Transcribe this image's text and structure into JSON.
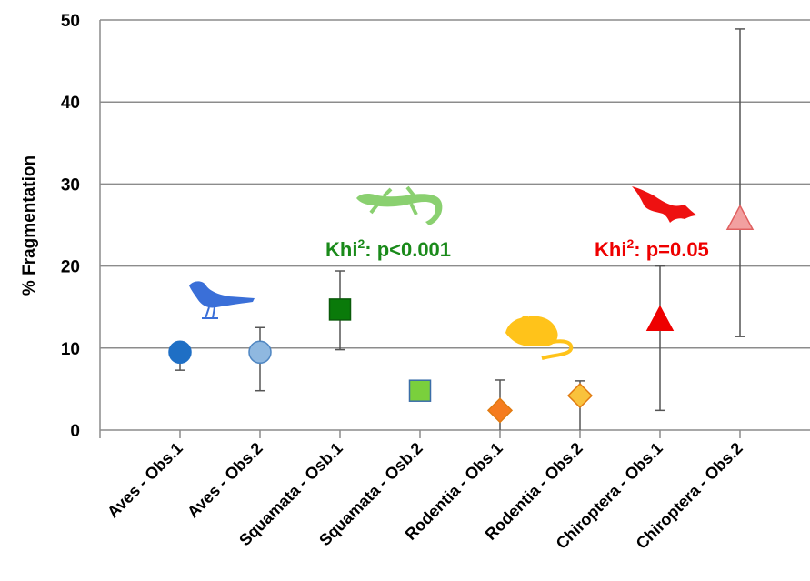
{
  "chart_data": {
    "type": "scatter",
    "ylabel": "% Fragmentation",
    "ylim": [
      0,
      50
    ],
    "yticks": [
      "0",
      "10",
      "20",
      "30",
      "40",
      "50"
    ],
    "grid": true,
    "categories": [
      "Aves - Obs.1",
      "Aves - Obs.2",
      "Squamata - Osb.1",
      "Squamata - Osb.2",
      "Rodentia - Obs.1",
      "Rodentia - Obs.2",
      "Chiroptera - Obs.1",
      "Chiroptera - Obs.2"
    ],
    "points": [
      {
        "category": "Aves - Obs.1",
        "value": 9.5,
        "err_low": 7.3,
        "err_high": 10.5,
        "marker": "circle",
        "color": "#1f6fc5"
      },
      {
        "category": "Aves - Obs.2",
        "value": 9.5,
        "err_low": 4.8,
        "err_high": 12.5,
        "marker": "circle",
        "color": "#8fb8e0"
      },
      {
        "category": "Squamata - Osb.1",
        "value": 14.7,
        "err_low": 9.8,
        "err_high": 19.4,
        "marker": "square",
        "color": "#0a7a0a"
      },
      {
        "category": "Squamata - Osb.2",
        "value": 4.8,
        "err_low": null,
        "err_high": null,
        "marker": "square",
        "color": "#7ad03c"
      },
      {
        "category": "Rodentia - Obs.1",
        "value": 2.4,
        "err_low": 0,
        "err_high": 6.1,
        "marker": "diamond",
        "color": "#f57c1f"
      },
      {
        "category": "Rodentia - Obs.2",
        "value": 4.2,
        "err_low": 0,
        "err_high": 6.0,
        "marker": "diamond",
        "color": "#f9c23c"
      },
      {
        "category": "Chiroptera - Obs.1",
        "value": 13.5,
        "err_low": 2.4,
        "err_high": 20.0,
        "marker": "triangle",
        "color": "#ee0000"
      },
      {
        "category": "Chiroptera - Obs.2",
        "value": 25.8,
        "err_low": 11.4,
        "err_high": 48.9,
        "marker": "triangle",
        "color": "#f2a0a0"
      }
    ],
    "annotations": [
      {
        "prefix": "Khi",
        "sup": "2",
        "suffix": ": p<0.001",
        "color": "#1a8a1a"
      },
      {
        "prefix": "Khi",
        "sup": "2",
        "suffix": ": p=0.05",
        "color": "#ee0000"
      }
    ],
    "icons": [
      {
        "name": "bird-icon",
        "color": "#3a6fd8"
      },
      {
        "name": "lizard-icon",
        "color": "#8ad070"
      },
      {
        "name": "rat-icon",
        "color": "#ffc31a"
      },
      {
        "name": "bat-icon",
        "color": "#ee1111"
      }
    ]
  }
}
